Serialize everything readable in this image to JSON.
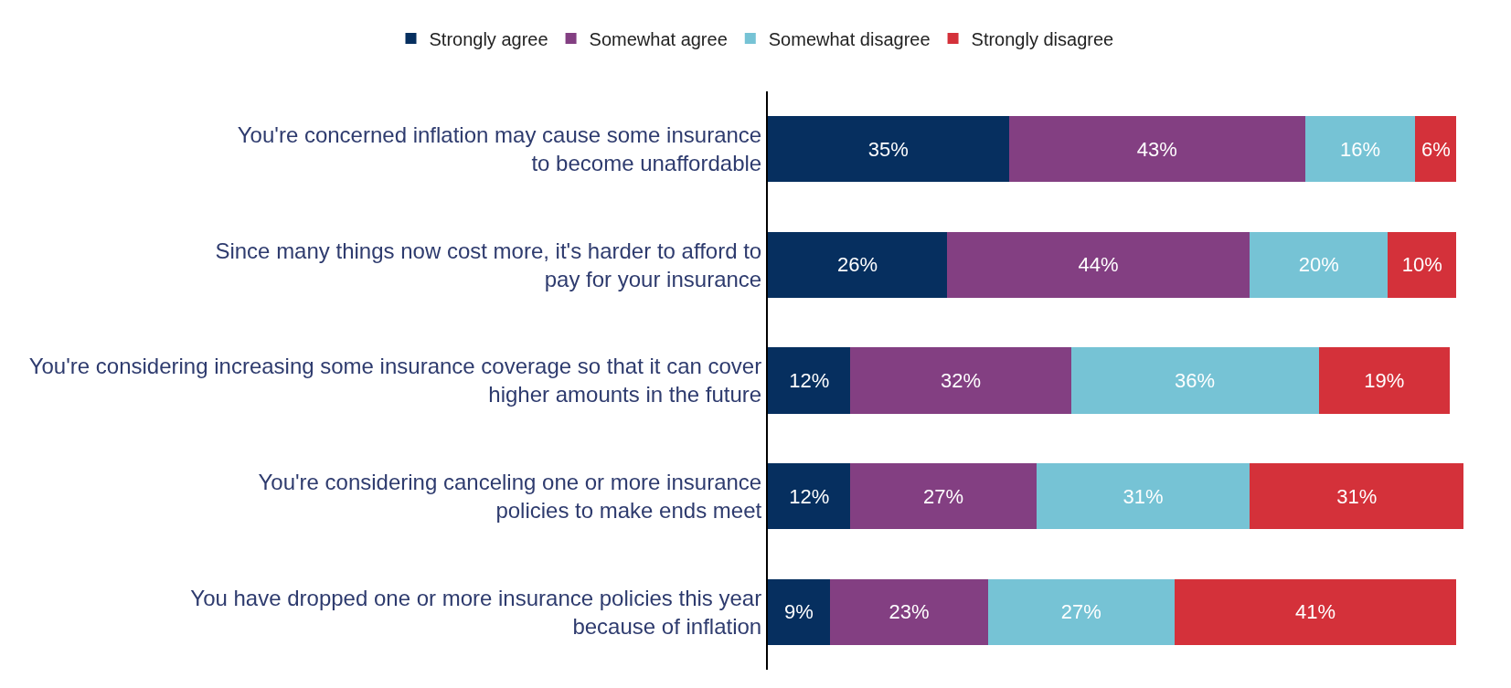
{
  "chart_data": {
    "type": "bar",
    "orientation": "horizontal",
    "stacked": true,
    "legend": "top",
    "categories": [
      "You're concerned inflation may cause some insurance to become unaffordable",
      "Since many things now cost more, it's harder to afford to pay for your insurance",
      "You're considering increasing some insurance coverage so that it can cover higher amounts in the future",
      "You're considering canceling one or more insurance policies to make ends meet",
      "You have dropped one or more insurance policies this year because of inflation"
    ],
    "series": [
      {
        "name": "Strongly agree",
        "color": "#062f5f",
        "values": [
          35,
          26,
          12,
          12,
          9
        ],
        "value_labels": [
          "35%",
          "26%",
          "12%",
          "12%",
          "9%"
        ]
      },
      {
        "name": "Somewhat agree",
        "color": "#833f82",
        "values": [
          43,
          44,
          32,
          27,
          23
        ],
        "value_labels": [
          "43%",
          "44%",
          "32%",
          "27%",
          "23%"
        ]
      },
      {
        "name": "Somewhat disagree",
        "color": "#76c3d5",
        "values": [
          16,
          20,
          36,
          31,
          27
        ],
        "value_labels": [
          "16%",
          "20%",
          "36%",
          "31%",
          "27%"
        ]
      },
      {
        "name": "Strongly disagree",
        "color": "#d4313a",
        "values": [
          6,
          10,
          19,
          31,
          41
        ],
        "value_labels": [
          "6%",
          "10%",
          "19%",
          "31%",
          "41%"
        ]
      }
    ]
  }
}
